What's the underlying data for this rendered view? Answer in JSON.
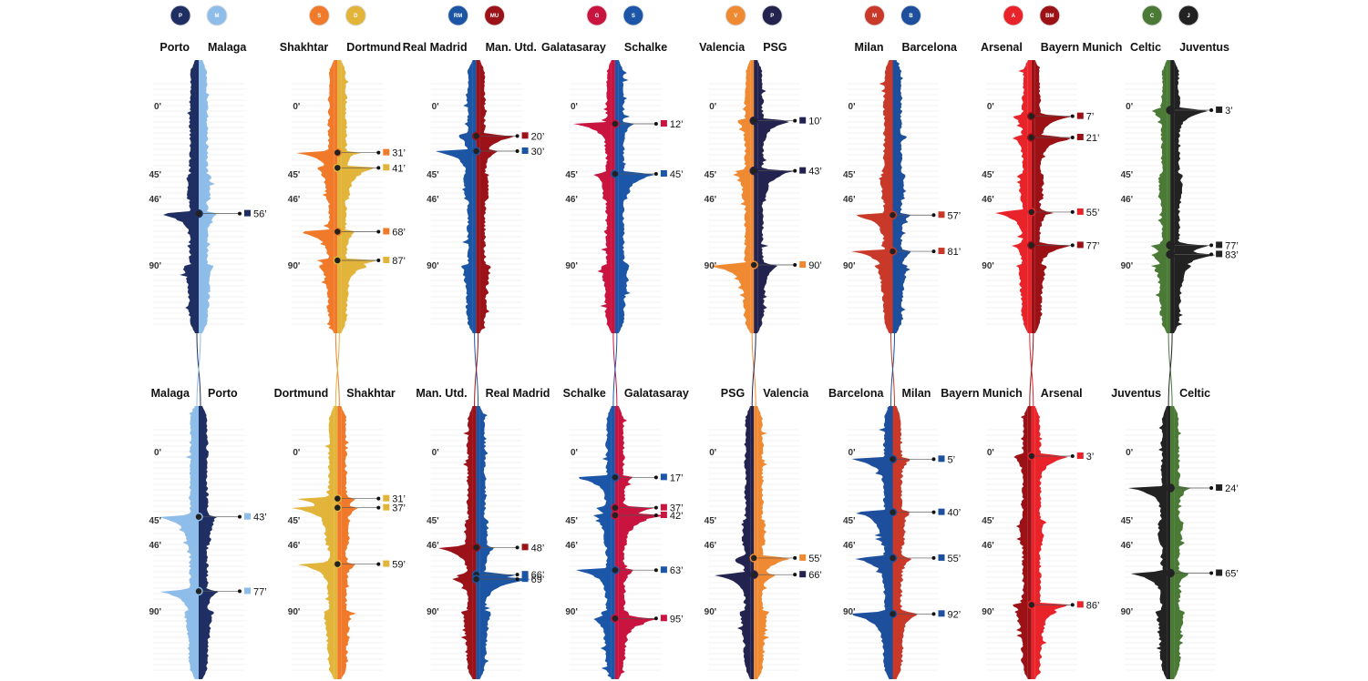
{
  "chart_data": {
    "type": "area",
    "time_marks": [
      "0'",
      "45'",
      "46'",
      "90'"
    ],
    "ties": [
      {
        "home": "Porto",
        "away": "Malaga",
        "colors": {
          "Porto": "#1f2f63",
          "Malaga": "#8dbde8"
        },
        "logos": {
          "Porto": "porto-crest-icon",
          "Malaga": "malaga-crest-icon"
        },
        "first_leg": {
          "left": "Porto",
          "right": "Malaga",
          "goals": [
            {
              "minute": 56,
              "team": "Porto"
            }
          ]
        },
        "second_leg": {
          "left": "Malaga",
          "right": "Porto",
          "goals": [
            {
              "minute": 43,
              "team": "Malaga"
            },
            {
              "minute": 77,
              "team": "Malaga"
            }
          ]
        }
      },
      {
        "home": "Shakhtar",
        "away": "Dortmund",
        "colors": {
          "Shakhtar": "#f07a2a",
          "Dortmund": "#e3b43a"
        },
        "logos": {
          "Shakhtar": "shakhtar-crest-icon",
          "Dortmund": "dortmund-crest-icon"
        },
        "first_leg": {
          "left": "Shakhtar",
          "right": "Dortmund",
          "goals": [
            {
              "minute": 31,
              "team": "Shakhtar"
            },
            {
              "minute": 41,
              "team": "Dortmund"
            },
            {
              "minute": 68,
              "team": "Shakhtar"
            },
            {
              "minute": 87,
              "team": "Dortmund"
            }
          ]
        },
        "second_leg": {
          "left": "Dortmund",
          "right": "Shakhtar",
          "goals": [
            {
              "minute": 31,
              "team": "Dortmund"
            },
            {
              "minute": 37,
              "team": "Dortmund"
            },
            {
              "minute": 59,
              "team": "Dortmund"
            }
          ]
        }
      },
      {
        "home": "Real Madrid",
        "away": "Man. Utd.",
        "colors": {
          "Real Madrid": "#1c55a4",
          "Man. Utd.": "#9b1218"
        },
        "logos": {
          "Real Madrid": "real-madrid-crest-icon",
          "Man. Utd.": "man-utd-crest-icon"
        },
        "first_leg": {
          "left": "Real Madrid",
          "right": "Man. Utd.",
          "goals": [
            {
              "minute": 20,
              "team": "Man. Utd."
            },
            {
              "minute": 30,
              "team": "Real Madrid"
            }
          ]
        },
        "second_leg": {
          "left": "Man. Utd.",
          "right": "Real Madrid",
          "goals": [
            {
              "minute": 48,
              "team": "Man. Utd."
            },
            {
              "minute": 66,
              "team": "Real Madrid"
            },
            {
              "minute": 69,
              "team": "Real Madrid"
            }
          ]
        }
      },
      {
        "home": "Galatasaray",
        "away": "Schalke",
        "colors": {
          "Galatasaray": "#c8143f",
          "Schalke": "#1b56a8"
        },
        "logos": {
          "Galatasaray": "galatasaray-crest-icon",
          "Schalke": "schalke-crest-icon"
        },
        "first_leg": {
          "left": "Galatasaray",
          "right": "Schalke",
          "goals": [
            {
              "minute": 12,
              "team": "Galatasaray"
            },
            {
              "minute": 45,
              "team": "Schalke"
            }
          ]
        },
        "second_leg": {
          "left": "Schalke",
          "right": "Galatasaray",
          "goals": [
            {
              "minute": 17,
              "team": "Schalke"
            },
            {
              "minute": 37,
              "team": "Galatasaray"
            },
            {
              "minute": 42,
              "team": "Galatasaray"
            },
            {
              "minute": 63,
              "team": "Schalke"
            },
            {
              "minute": 95,
              "team": "Galatasaray"
            }
          ]
        }
      },
      {
        "home": "Valencia",
        "away": "PSG",
        "colors": {
          "Valencia": "#f08a32",
          "PSG": "#22234f"
        },
        "logos": {
          "Valencia": "valencia-crest-icon",
          "PSG": "psg-crest-icon"
        },
        "first_leg": {
          "left": "Valencia",
          "right": "PSG",
          "goals": [
            {
              "minute": 10,
              "team": "PSG"
            },
            {
              "minute": 43,
              "team": "PSG"
            },
            {
              "minute": 90,
              "team": "Valencia"
            }
          ]
        },
        "second_leg": {
          "left": "PSG",
          "right": "Valencia",
          "goals": [
            {
              "minute": 55,
              "team": "Valencia"
            },
            {
              "minute": 66,
              "team": "PSG"
            }
          ]
        }
      },
      {
        "home": "Milan",
        "away": "Barcelona",
        "colors": {
          "Milan": "#c8392a",
          "Barcelona": "#1d4f9c"
        },
        "logos": {
          "Milan": "milan-crest-icon",
          "Barcelona": "barcelona-crest-icon"
        },
        "first_leg": {
          "left": "Milan",
          "right": "Barcelona",
          "goals": [
            {
              "minute": 57,
              "team": "Milan"
            },
            {
              "minute": 81,
              "team": "Milan"
            }
          ]
        },
        "second_leg": {
          "left": "Barcelona",
          "right": "Milan",
          "goals": [
            {
              "minute": 5,
              "team": "Barcelona"
            },
            {
              "minute": 40,
              "team": "Barcelona"
            },
            {
              "minute": 55,
              "team": "Barcelona"
            },
            {
              "minute": 92,
              "team": "Barcelona"
            }
          ]
        }
      },
      {
        "home": "Arsenal",
        "away": "Bayern Munich",
        "colors": {
          "Arsenal": "#e8232a",
          "Bayern Munich": "#9b1116"
        },
        "logos": {
          "Arsenal": "arsenal-crest-icon",
          "Bayern Munich": "bayern-crest-icon"
        },
        "first_leg": {
          "left": "Arsenal",
          "right": "Bayern Munich",
          "goals": [
            {
              "minute": 7,
              "team": "Bayern Munich"
            },
            {
              "minute": 21,
              "team": "Bayern Munich"
            },
            {
              "minute": 55,
              "team": "Arsenal"
            },
            {
              "minute": 77,
              "team": "Bayern Munich"
            }
          ]
        },
        "second_leg": {
          "left": "Bayern Munich",
          "right": "Arsenal",
          "goals": [
            {
              "minute": 3,
              "team": "Arsenal"
            },
            {
              "minute": 86,
              "team": "Arsenal"
            }
          ]
        }
      },
      {
        "home": "Celtic",
        "away": "Juventus",
        "colors": {
          "Celtic": "#4a7a36",
          "Juventus": "#222222"
        },
        "logos": {
          "Celtic": "celtic-crest-icon",
          "Juventus": "juventus-crest-icon"
        },
        "first_leg": {
          "left": "Celtic",
          "right": "Juventus",
          "goals": [
            {
              "minute": 3,
              "team": "Juventus"
            },
            {
              "minute": 77,
              "team": "Juventus"
            },
            {
              "minute": 83,
              "team": "Juventus"
            }
          ]
        },
        "second_leg": {
          "left": "Juventus",
          "right": "Celtic",
          "goals": [
            {
              "minute": 24,
              "team": "Juventus"
            },
            {
              "minute": 65,
              "team": "Juventus"
            }
          ]
        }
      }
    ]
  }
}
